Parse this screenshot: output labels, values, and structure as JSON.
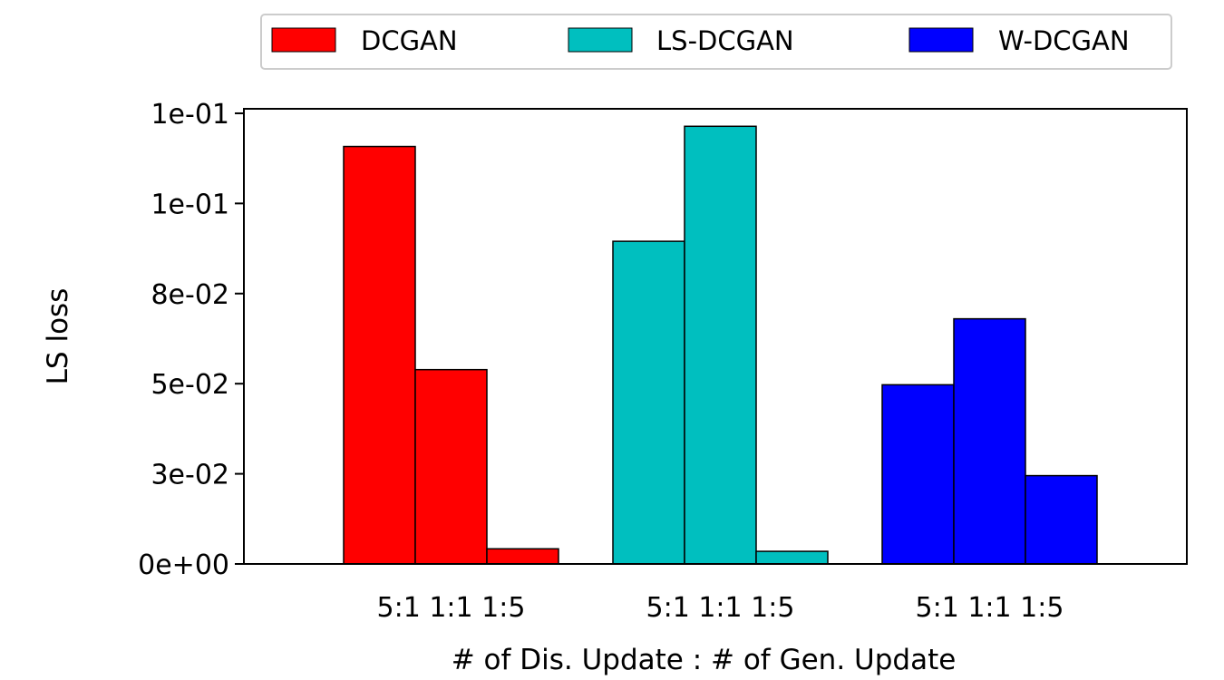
{
  "chart_data": {
    "type": "bar",
    "xlabel": "# of Dis. Update : # of Gen. Update",
    "ylabel": "LS loss",
    "ylim": [
      0,
      0.12625
    ],
    "yticks": [
      {
        "value": 0.0,
        "label": "0e+00"
      },
      {
        "value": 0.025,
        "label": "3e-02"
      },
      {
        "value": 0.05,
        "label": "5e-02"
      },
      {
        "value": 0.075,
        "label": "8e-02"
      },
      {
        "value": 0.1,
        "label": "1e-01"
      },
      {
        "value": 0.125,
        "label": "1e-01"
      }
    ],
    "grid": false,
    "legend_position": "top",
    "categories": [
      "5:1",
      "1:1",
      "1:5"
    ],
    "group_labels": [
      "5:1 1:1 1:5",
      "5:1 1:1 1:5",
      "5:1 1:1 1:5"
    ],
    "series": [
      {
        "name": "DCGAN",
        "color": "#ff0000",
        "values": [
          0.1158,
          0.0539,
          0.0042
        ]
      },
      {
        "name": "LS-DCGAN",
        "color": "#00bfbf",
        "values": [
          0.0895,
          0.1214,
          0.0035
        ]
      },
      {
        "name": "W-DCGAN",
        "color": "#0000ff",
        "values": [
          0.0497,
          0.068,
          0.0245
        ]
      }
    ]
  }
}
